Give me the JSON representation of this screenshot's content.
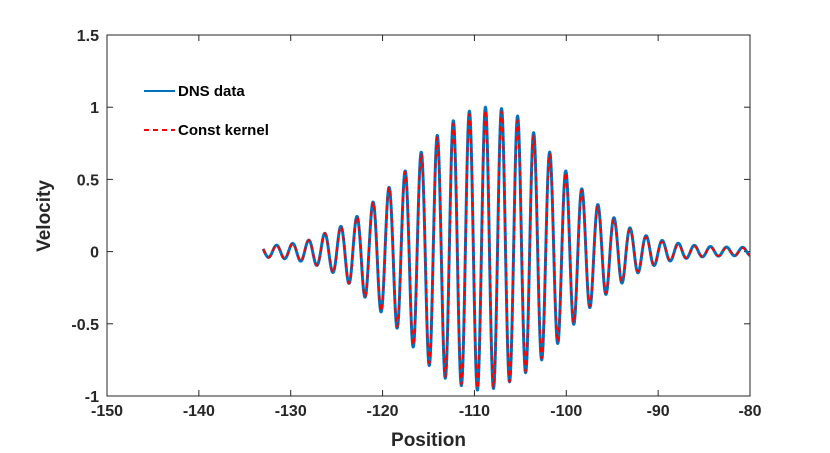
{
  "chart_data": {
    "type": "line",
    "xlabel": "Position",
    "ylabel": "Velocity",
    "xlim": [
      -150,
      -80
    ],
    "ylim": [
      -1,
      1.5
    ],
    "xticks": [
      -150,
      -140,
      -130,
      -120,
      -110,
      -100,
      -90,
      -80
    ],
    "yticks": [
      -1,
      -0.5,
      0,
      0.5,
      1,
      1.5
    ],
    "xtick_labels": [
      "-150",
      "-140",
      "-130",
      "-120",
      "-110",
      "-100",
      "-90",
      "-80"
    ],
    "ytick_labels": [
      "-1",
      "-0.5",
      "0",
      "0.5",
      "1",
      "1.5"
    ],
    "grid": false,
    "legend_position": "top-left",
    "x_range": [
      -133,
      -80
    ],
    "wavelength": 1.75,
    "packet_center": -108.4,
    "series": [
      {
        "name": "DNS data",
        "color": "#0072BD",
        "style": "solid",
        "peaks": [
          {
            "x": -128.0,
            "y": 0.08
          },
          {
            "x": -124.0,
            "y": 0.19
          },
          {
            "x": -122.2,
            "y": 0.27
          },
          {
            "x": -120.3,
            "y": 0.39
          },
          {
            "x": -118.3,
            "y": 0.5
          },
          {
            "x": -116.5,
            "y": 0.64
          },
          {
            "x": -114.6,
            "y": 0.77
          },
          {
            "x": -112.7,
            "y": 0.89
          },
          {
            "x": -110.7,
            "y": 0.97
          },
          {
            "x": -108.8,
            "y": 1.0
          },
          {
            "x": -107.0,
            "y": 0.99
          },
          {
            "x": -105.0,
            "y": 0.93
          },
          {
            "x": -103.1,
            "y": 0.79
          },
          {
            "x": -101.3,
            "y": 0.65
          },
          {
            "x": -99.4,
            "y": 0.51
          },
          {
            "x": -97.5,
            "y": 0.38
          },
          {
            "x": -95.6,
            "y": 0.27
          },
          {
            "x": -93.8,
            "y": 0.19
          },
          {
            "x": -91.8,
            "y": 0.12
          },
          {
            "x": -89.8,
            "y": 0.08
          },
          {
            "x": -88.0,
            "y": 0.06
          }
        ],
        "troughs": [
          {
            "x": -123.3,
            "y": -0.24
          },
          {
            "x": -121.3,
            "y": -0.35
          },
          {
            "x": -119.3,
            "y": -0.47
          },
          {
            "x": -117.4,
            "y": -0.6
          },
          {
            "x": -115.6,
            "y": -0.75
          },
          {
            "x": -113.7,
            "y": -0.86
          },
          {
            "x": -111.8,
            "y": -0.92
          },
          {
            "x": -109.9,
            "y": -0.96
          },
          {
            "x": -108.0,
            "y": -0.95
          },
          {
            "x": -106.1,
            "y": -0.9
          },
          {
            "x": -104.2,
            "y": -0.83
          },
          {
            "x": -102.3,
            "y": -0.73
          },
          {
            "x": -100.4,
            "y": -0.6
          },
          {
            "x": -98.5,
            "y": -0.45
          },
          {
            "x": -96.6,
            "y": -0.34
          },
          {
            "x": -94.7,
            "y": -0.25
          },
          {
            "x": -92.8,
            "y": -0.17
          }
        ]
      },
      {
        "name": "Const kernel",
        "color": "#FF0000",
        "style": "dashed",
        "peaks": [
          {
            "x": -128.0,
            "y": 0.08
          },
          {
            "x": -124.0,
            "y": 0.19
          },
          {
            "x": -122.2,
            "y": 0.27
          },
          {
            "x": -120.3,
            "y": 0.39
          },
          {
            "x": -118.3,
            "y": 0.5
          },
          {
            "x": -116.5,
            "y": 0.63
          },
          {
            "x": -114.6,
            "y": 0.76
          },
          {
            "x": -112.7,
            "y": 0.87
          },
          {
            "x": -110.7,
            "y": 0.95
          },
          {
            "x": -108.8,
            "y": 0.98
          },
          {
            "x": -107.0,
            "y": 0.97
          },
          {
            "x": -105.0,
            "y": 0.9
          },
          {
            "x": -103.1,
            "y": 0.77
          },
          {
            "x": -101.3,
            "y": 0.64
          },
          {
            "x": -99.4,
            "y": 0.5
          },
          {
            "x": -97.5,
            "y": 0.37
          },
          {
            "x": -95.6,
            "y": 0.26
          },
          {
            "x": -93.8,
            "y": 0.18
          },
          {
            "x": -91.8,
            "y": 0.11
          },
          {
            "x": -89.8,
            "y": 0.07
          },
          {
            "x": -88.0,
            "y": 0.05
          }
        ],
        "troughs": [
          {
            "x": -123.3,
            "y": -0.24
          },
          {
            "x": -121.3,
            "y": -0.35
          },
          {
            "x": -119.3,
            "y": -0.46
          },
          {
            "x": -117.4,
            "y": -0.59
          },
          {
            "x": -115.6,
            "y": -0.73
          },
          {
            "x": -113.7,
            "y": -0.85
          },
          {
            "x": -111.8,
            "y": -0.91
          },
          {
            "x": -109.9,
            "y": -0.95
          },
          {
            "x": -108.0,
            "y": -0.94
          },
          {
            "x": -106.1,
            "y": -0.9
          },
          {
            "x": -104.2,
            "y": -0.82
          },
          {
            "x": -102.3,
            "y": -0.72
          },
          {
            "x": -100.4,
            "y": -0.59
          },
          {
            "x": -98.5,
            "y": -0.44
          },
          {
            "x": -96.6,
            "y": -0.33
          },
          {
            "x": -94.7,
            "y": -0.24
          },
          {
            "x": -92.8,
            "y": -0.16
          }
        ]
      }
    ]
  }
}
